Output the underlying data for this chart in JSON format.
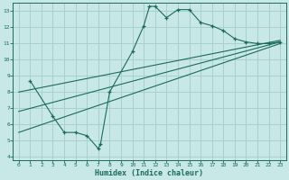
{
  "xlabel": "Humidex (Indice chaleur)",
  "ylabel": "",
  "bg_color": "#c8e8e8",
  "line_color": "#1a6b5a",
  "grid_color": "#a8d0d0",
  "xlim": [
    -0.5,
    23.5
  ],
  "ylim": [
    3.8,
    13.5
  ],
  "xticks": [
    0,
    1,
    2,
    3,
    4,
    5,
    6,
    7,
    8,
    9,
    10,
    11,
    12,
    13,
    14,
    15,
    16,
    17,
    18,
    19,
    20,
    21,
    22,
    23
  ],
  "yticks": [
    4,
    5,
    6,
    7,
    8,
    9,
    10,
    11,
    12,
    13
  ],
  "line1_x": [
    1,
    3,
    4,
    5,
    6,
    7,
    7.2,
    8,
    10,
    11,
    11.5,
    12,
    13,
    14,
    15,
    16,
    17,
    18,
    19,
    20,
    21,
    22,
    23
  ],
  "line1_y": [
    8.7,
    6.5,
    5.5,
    5.5,
    5.3,
    4.5,
    4.8,
    8.0,
    10.5,
    12.1,
    13.3,
    13.3,
    12.6,
    13.1,
    13.1,
    12.3,
    12.1,
    11.8,
    11.3,
    11.1,
    11.0,
    11.0,
    11.1
  ],
  "line2_x": [
    0,
    23
  ],
  "line2_y": [
    5.5,
    11.0
  ],
  "line3_x": [
    0,
    23
  ],
  "line3_y": [
    6.8,
    11.1
  ],
  "line4_x": [
    0,
    23
  ],
  "line4_y": [
    8.0,
    11.2
  ]
}
